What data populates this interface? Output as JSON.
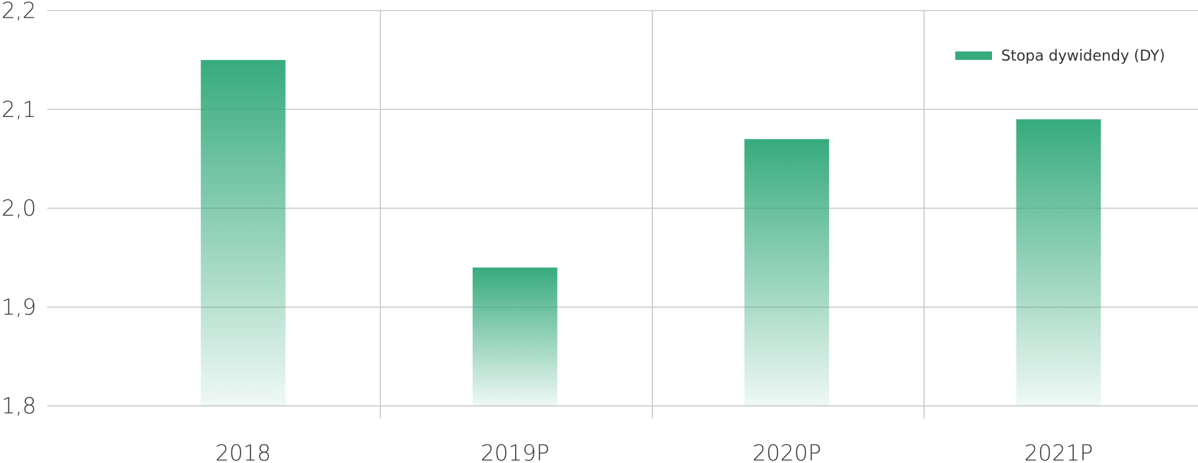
{
  "chart_data": {
    "type": "bar",
    "categories": [
      "2018",
      "2019P",
      "2020P",
      "2021P"
    ],
    "series": [
      {
        "name": "Stopa dywidendy (DY)",
        "color": "#37ab7e",
        "values": [
          2.15,
          1.94,
          2.07,
          2.09
        ]
      }
    ],
    "ylim": [
      1.8,
      2.2
    ],
    "yticks": [
      {
        "value": 1.8,
        "label": "1,8"
      },
      {
        "value": 1.9,
        "label": "1,9"
      },
      {
        "value": 2.0,
        "label": "2,0"
      },
      {
        "value": 2.1,
        "label": "2,1"
      },
      {
        "value": 2.2,
        "label": "2,2"
      }
    ],
    "grid": true,
    "legend": "top-right"
  }
}
